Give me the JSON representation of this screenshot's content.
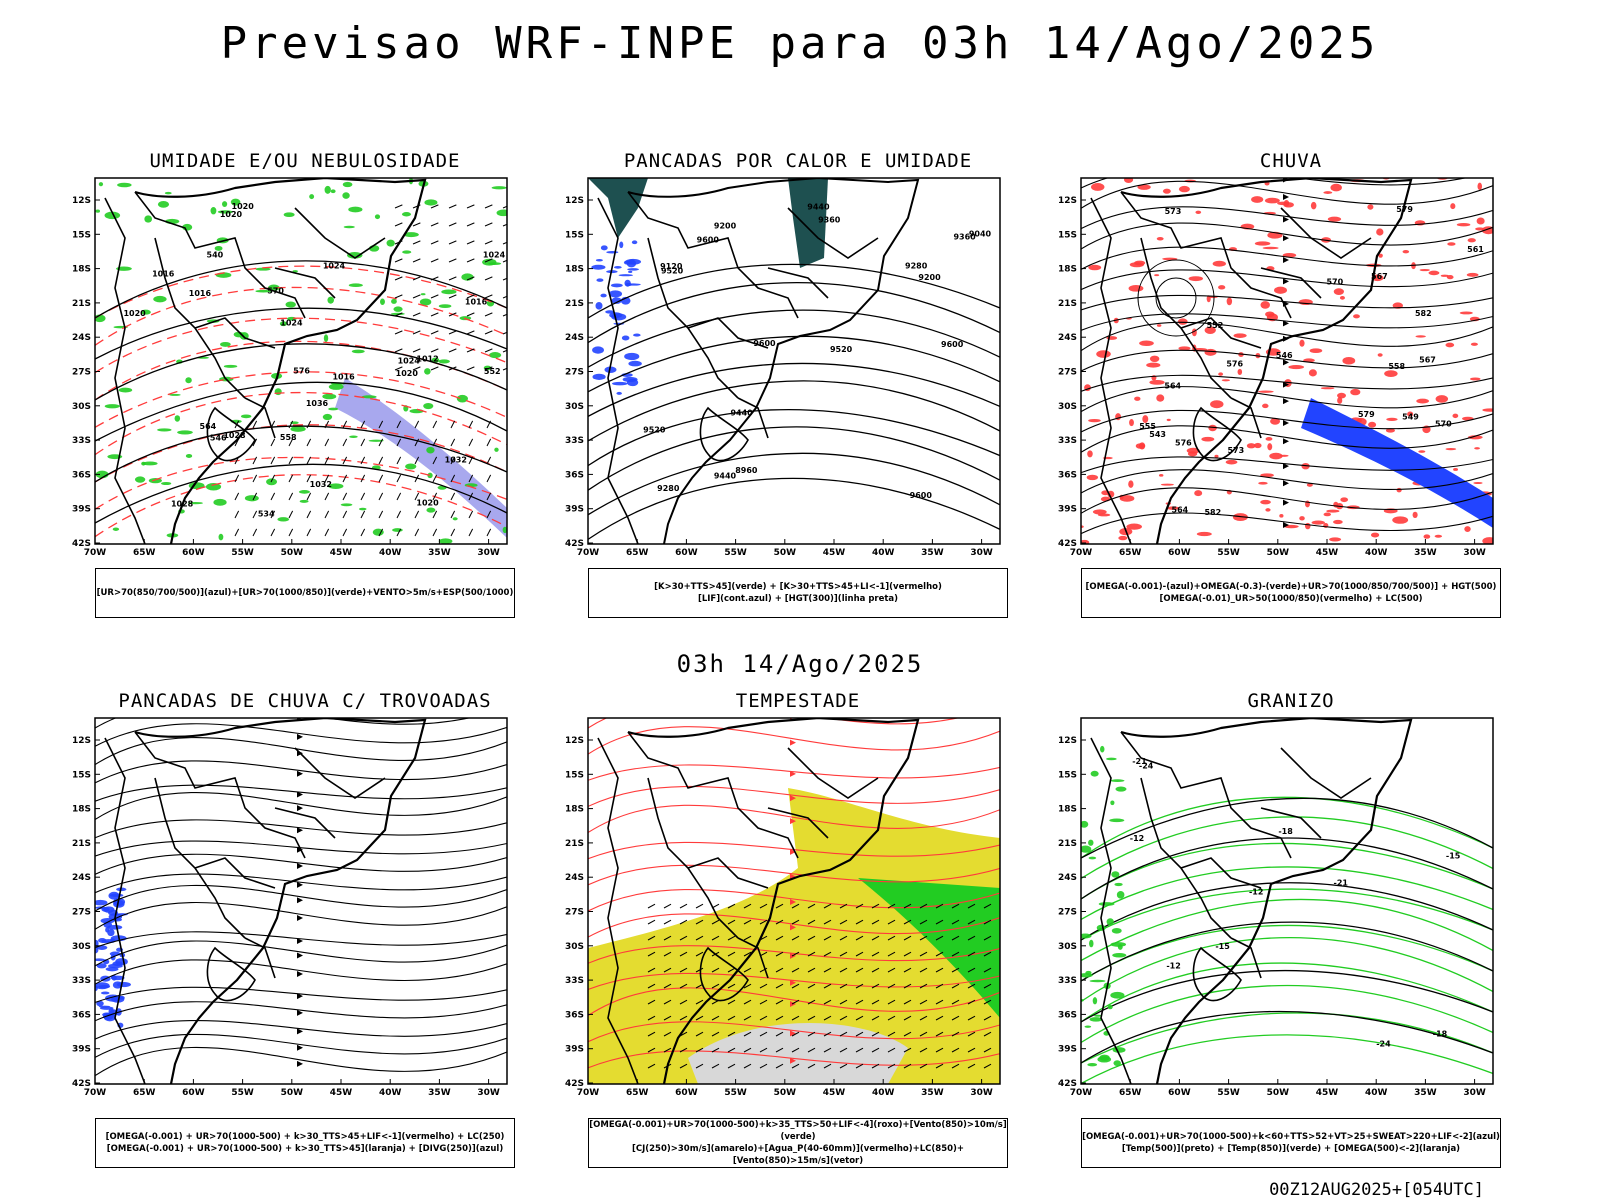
{
  "header": {
    "title": "Previsao WRF-INPE  para 03h 14/Ago/2025",
    "subtitle": "03h 14/Ago/2025",
    "footer": "00Z12AUG2025+[054UTC]"
  },
  "axes": {
    "lat_labels": [
      "12S",
      "15S",
      "18S",
      "21S",
      "24S",
      "27S",
      "30S",
      "33S",
      "36S",
      "39S",
      "42S"
    ],
    "lon_labels": [
      "70W",
      "65W",
      "60W",
      "55W",
      "50W",
      "45W",
      "40W",
      "35W",
      "30W"
    ]
  },
  "colors": {
    "black": "#000000",
    "red": "#ff3b3b",
    "green": "#22cc22",
    "blue": "#2244ff",
    "lavender": "#a8a8ee",
    "teal": "#1e5050",
    "yellow": "#e4dc30",
    "gray": "#d8d8d8"
  },
  "panels": [
    {
      "title": "UMIDADE E/OU NEBULOSIDADE",
      "legend": [
        "[UR>70(850/700/500)](azul)+[UR>70(1000/850)](verde)+VENTO>5m/s+ESP(500/1000)"
      ],
      "labels": [
        "1016",
        "1016",
        "1024",
        "1020",
        "1028",
        "1024",
        "1020",
        "1016",
        "1032",
        "1020",
        "1020",
        "1024",
        "1020",
        "1012",
        "1036",
        "1032",
        "570",
        "576",
        "564",
        "558",
        "552",
        "546",
        "540",
        "534",
        "1016",
        "1028",
        "1024"
      ]
    },
    {
      "title": "PANCADAS POR CALOR E UMIDADE",
      "legend": [
        "[K>30+TTS>45](verde) + [K>30+TTS>45+LI<-1](vermelho)",
        "[LIF](cont.azul) + [HGT(300)](linha preta)"
      ],
      "labels": [
        "9600",
        "9600",
        "9600",
        "9600",
        "9520",
        "9520",
        "9520",
        "9440",
        "9440",
        "9360",
        "9280",
        "9200",
        "9120",
        "9040",
        "8960",
        "9360",
        "9280",
        "9200",
        "9440"
      ]
    },
    {
      "title": "CHUVA",
      "legend": [
        "[OMEGA(-0.001)-(azul)+OMEGA(-0.3)-(verde)+UR>70(1000/850/700/500)] + HGT(500)",
        "[OMEGA(-0.01)_UR>50(1000/850)(vermelho) + LC(500)"
      ],
      "labels": [
        "582",
        "579",
        "576",
        "573",
        "570",
        "567",
        "564",
        "561",
        "558",
        "555",
        "552",
        "549",
        "546",
        "543",
        "573",
        "570",
        "567",
        "564",
        "582",
        "579",
        "576"
      ]
    },
    {
      "title": "PANCADAS DE CHUVA C/ TROVOADAS",
      "legend": [
        "[OMEGA(-0.001) + UR>70(1000-500) + k>30_TTS>45+LIF<-1](vermelho) + LC(250)",
        "[OMEGA(-0.001) + UR>70(1000-500) + k>30_TTS>45](laranja) + [DIVG(250)](azul)"
      ],
      "labels": []
    },
    {
      "title": "TEMPESTADE",
      "legend": [
        "[OMEGA(-0.001)+UR>70(1000-500)+k>35_TTS>50+LIF<-4](roxo)+[Vento(850)>10m/s](verde)",
        "[CJ(250)>30m/s](amarelo)+[Agua_P(40-60mm)](vermelho)+LC(850)+[Vento(850)>15m/s](vetor)"
      ],
      "labels": []
    },
    {
      "title": "GRANIZO",
      "legend": [
        "[OMEGA(-0.001)+UR>70(1000-500)+k<60+TTS>52+VT>25+SWEAT>220+LIF<-2](azul)",
        "[Temp(500)](preto) + [Temp(850)](verde) + [OMEGA(500)<-2](laranja)"
      ],
      "labels": [
        "-12",
        "-12",
        "-12",
        "-15",
        "-15",
        "-18",
        "-18",
        "-21",
        "-24",
        "-21",
        "-24"
      ]
    }
  ]
}
